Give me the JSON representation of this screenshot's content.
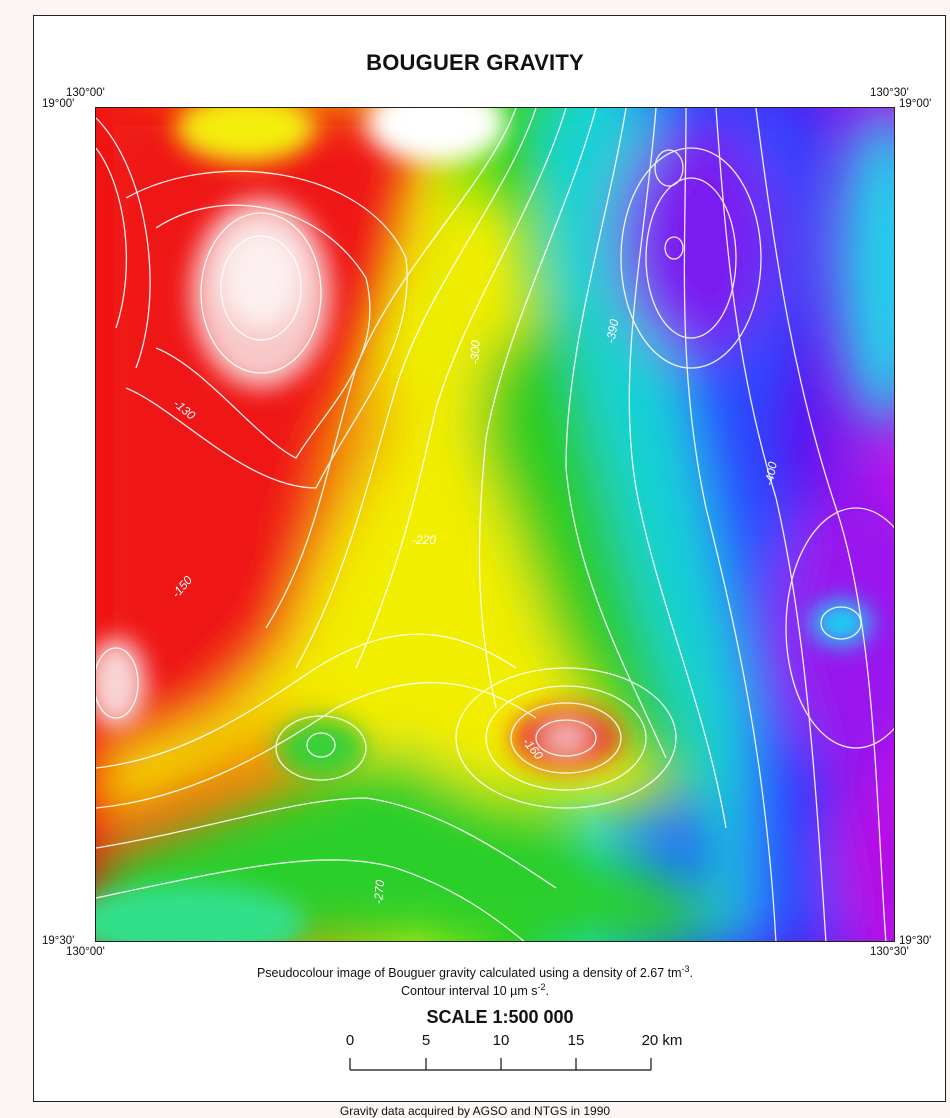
{
  "title": "BOUGUER GRAVITY",
  "corners": {
    "tl_lon": "130°00'",
    "tl_lat": "19°00'",
    "tr_lon": "130°30'",
    "tr_lat": "19°00'",
    "bl_lat": "19°30'",
    "bl_lon": "130°00'",
    "br_lat": "19°30'",
    "br_lon": "130°30'"
  },
  "contour_labels": {
    "l130": "-130",
    "l150": "-150",
    "l160": "-160",
    "l220": "-220",
    "l270": "-270",
    "l300": "-300",
    "l390": "-390",
    "l400": "-400"
  },
  "caption": {
    "line1_pre": "Pseudocolour image of Bouguer gravity calculated using a density of 2.67 tm",
    "line1_sup": "-3",
    "line1_post": ".",
    "line2_pre": "Contour interval 10 µm s",
    "line2_sup": "-2",
    "line2_post": "."
  },
  "scale": {
    "title": "SCALE 1:500 000",
    "ticks": [
      "0",
      "5",
      "10",
      "15",
      "20 km"
    ]
  },
  "footer": "Gravity data acquired by AGSO and NTGS in 1990"
}
